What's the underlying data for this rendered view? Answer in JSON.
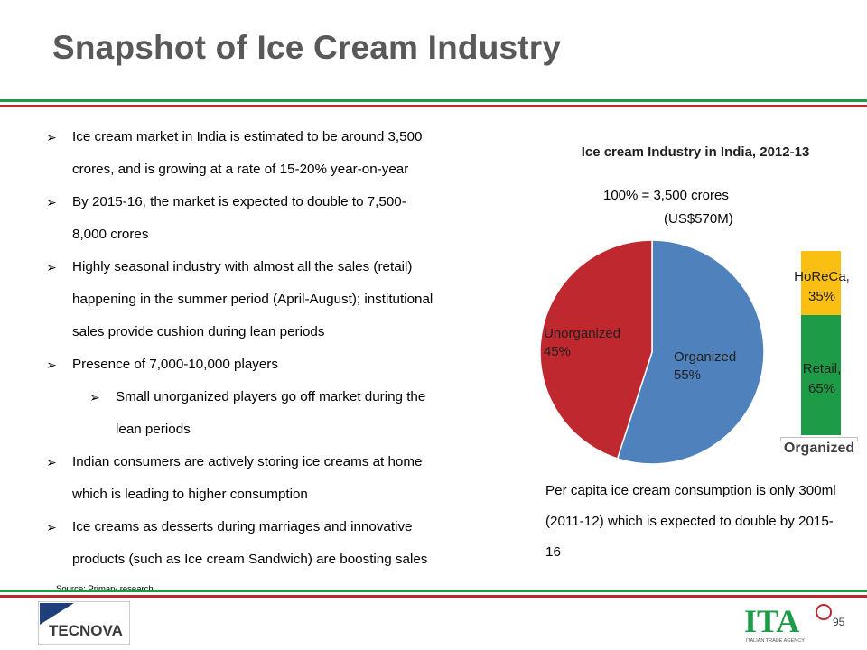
{
  "slide": {
    "title": "Snapshot of Ice Cream Industry",
    "page_number": "95",
    "source": "Source: Primary research"
  },
  "bullets": [
    {
      "level": 1,
      "text": "Ice cream market in India is estimated to be around 3,500"
    },
    {
      "level": 0,
      "text": "crores, and is growing at a rate of 15-20% year-on-year"
    },
    {
      "level": 1,
      "text": "By 2015-16, the market is expected to double to 7,500-"
    },
    {
      "level": 0,
      "text": "8,000 crores"
    },
    {
      "level": 1,
      "text": "Highly seasonal industry with almost all the sales (retail)"
    },
    {
      "level": 0,
      "text": "happening in the summer period (April-August); institutional"
    },
    {
      "level": 0,
      "text": "sales provide cushion during lean periods"
    },
    {
      "level": 1,
      "text": "Presence of 7,000-10,000 players"
    },
    {
      "level": 2,
      "text": "Small unorganized players go off market during the"
    },
    {
      "level": 3,
      "text": "lean periods"
    },
    {
      "level": 1,
      "text": "Indian consumers are actively storing ice creams at home"
    },
    {
      "level": 0,
      "text": "which is leading to higher consumption"
    },
    {
      "level": 1,
      "text": "Ice creams as desserts during marriages and innovative"
    },
    {
      "level": 0,
      "text": "products (such as Ice cream Sandwich) are boosting sales"
    }
  ],
  "bullet_glyph": "➢",
  "chart_data": {
    "type": "pie",
    "title": "Ice cream Industry in India, 2012-13",
    "subtitle_line1": "100% = 3,500 crores",
    "subtitle_line2": "(US$570M)",
    "slices": [
      {
        "label": "Organized",
        "value": 55,
        "value_label": "55%",
        "color": "#4f81bd"
      },
      {
        "label": "Unorganized",
        "value": 45,
        "value_label": "45%",
        "color": "#c0282f"
      }
    ],
    "stacked_bar": {
      "caption": "Organized",
      "segments": [
        {
          "label": "Retail,",
          "value": 65,
          "value_label": "65%",
          "color": "#1e9b47"
        },
        {
          "label": "HoReCa,",
          "value": 35,
          "value_label": "35%",
          "color": "#fbbf13"
        }
      ]
    }
  },
  "note": "Per capita ice cream consumption is only 300ml (2011-12) which is expected to double by 2015-16",
  "logos": {
    "left_text": "TECNOVA",
    "right_text": "ITA",
    "right_subtext": "ITALIAN TRADE AGENCY"
  },
  "colors": {
    "green": "#1e9b47",
    "red": "#c0282f",
    "title_gray": "#595959"
  }
}
